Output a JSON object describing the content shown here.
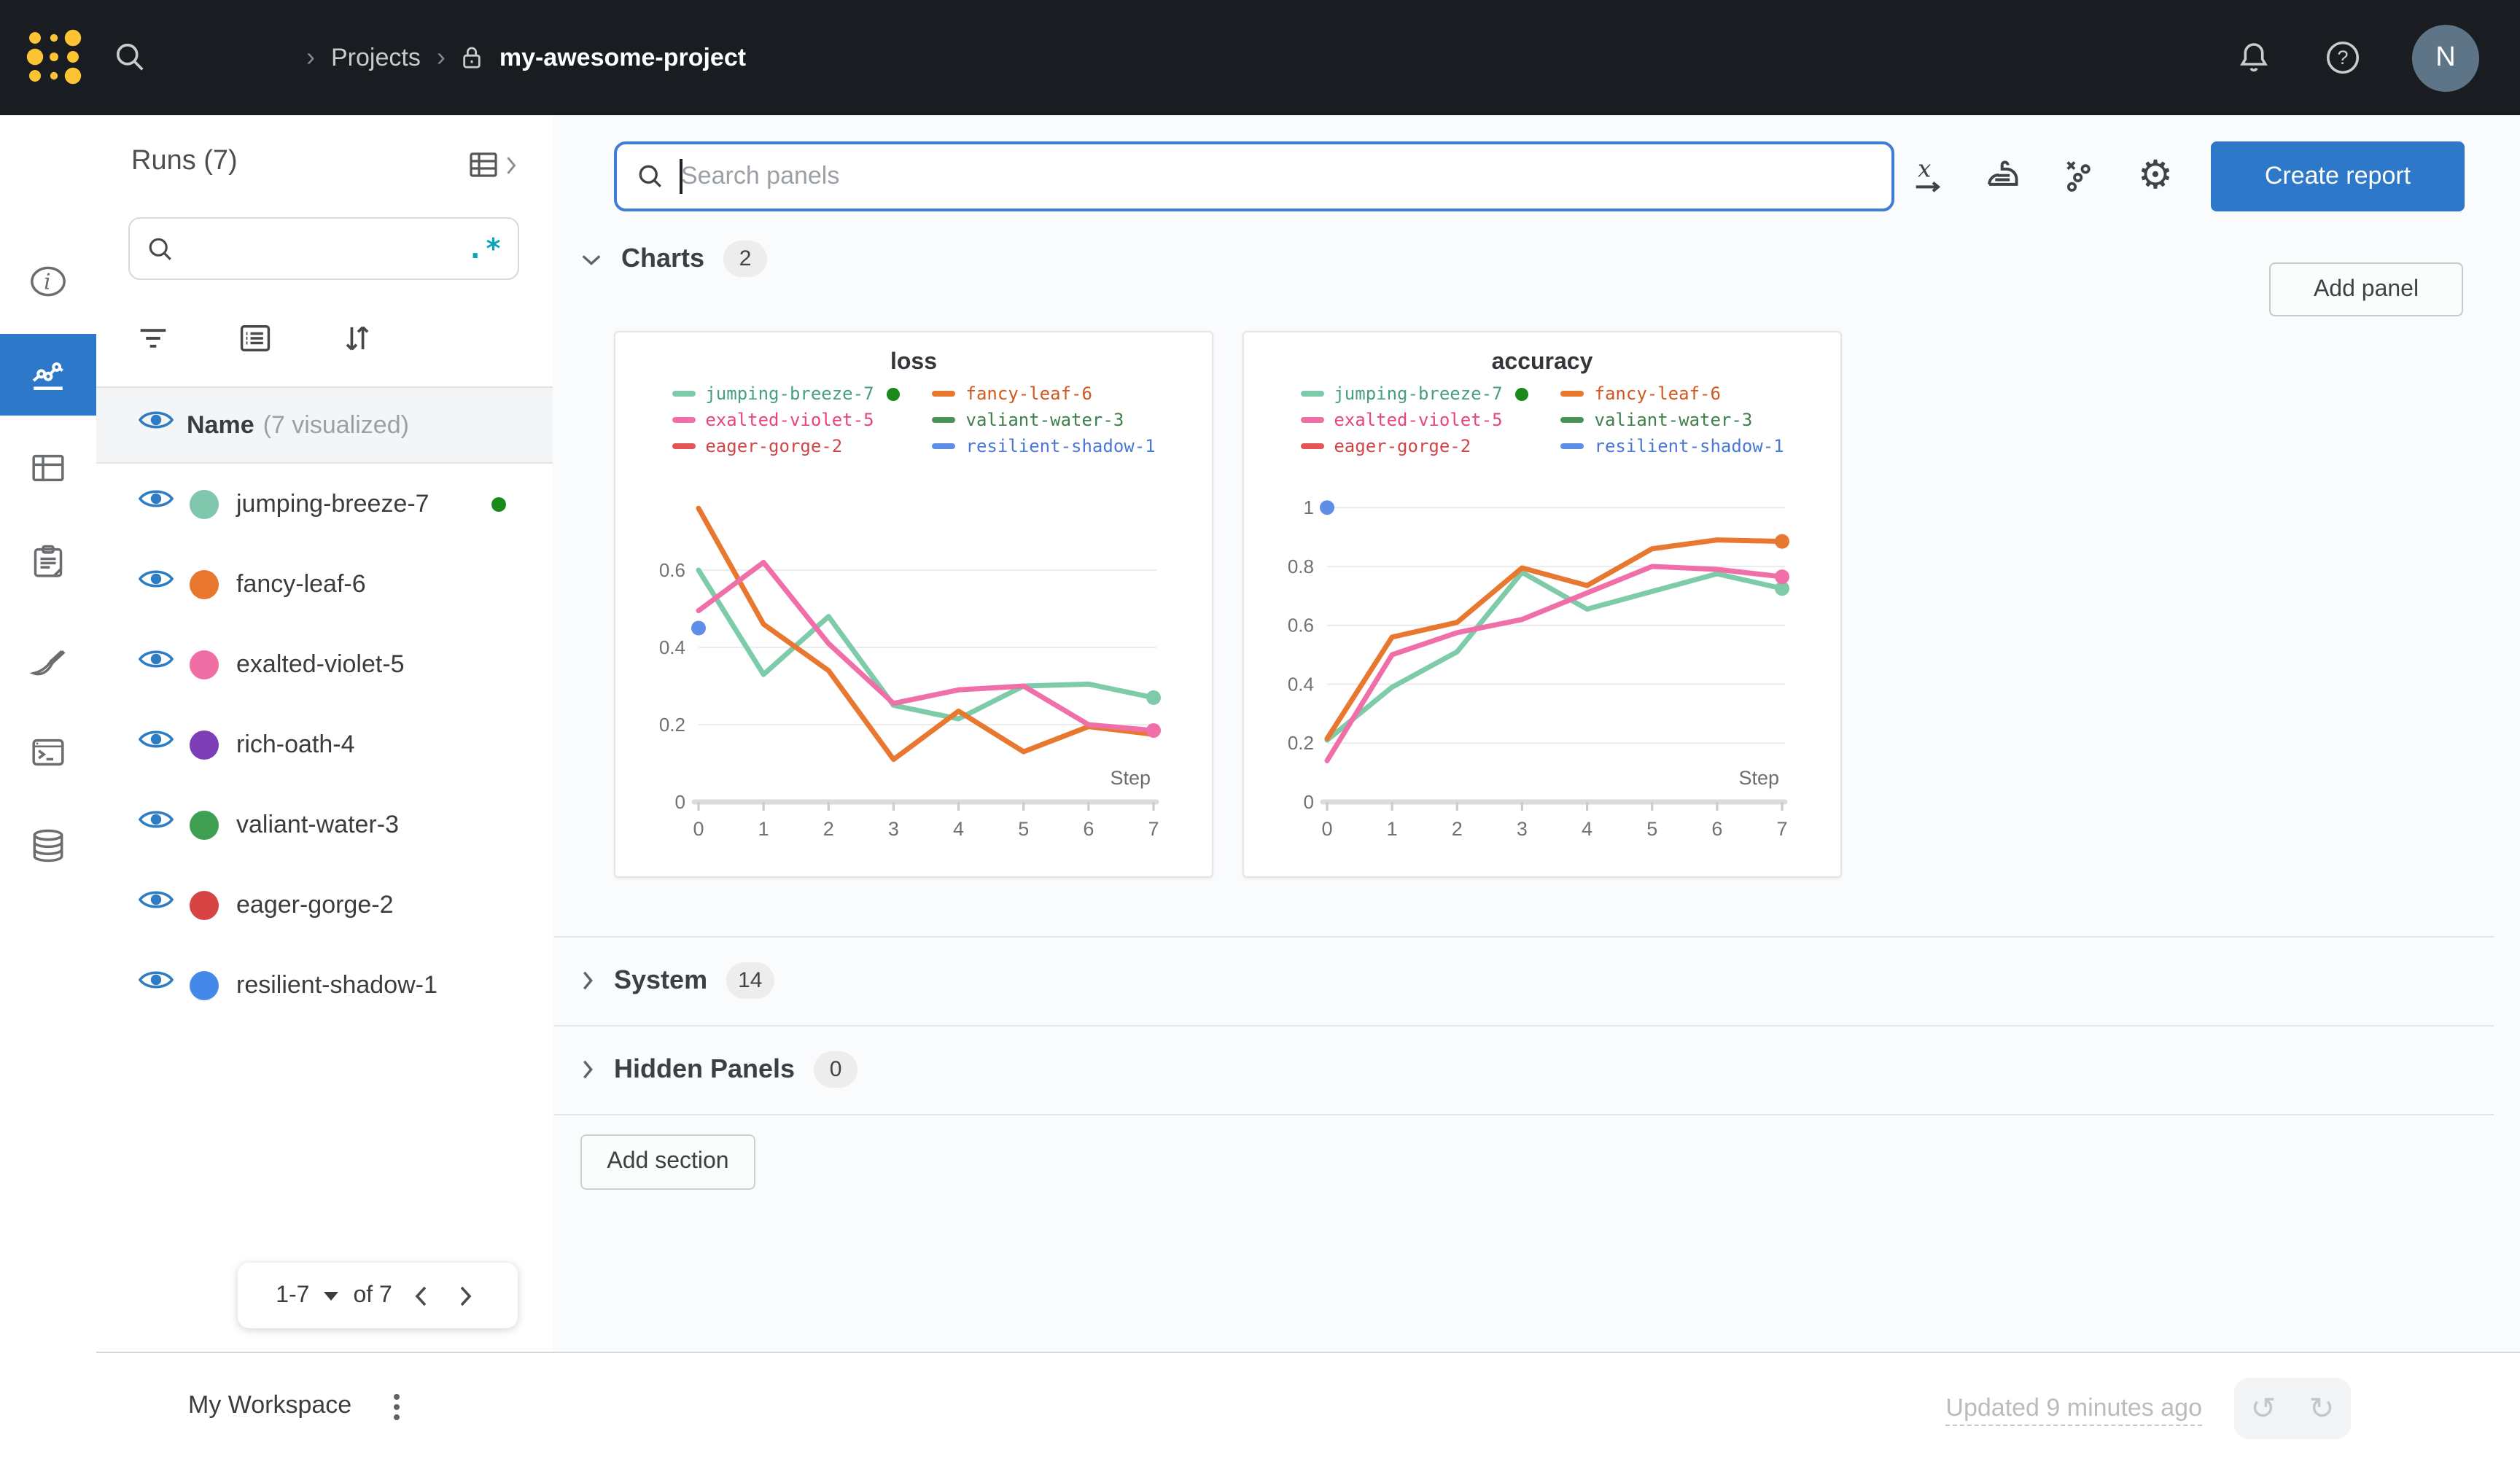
{
  "topbar": {
    "breadcrumb": {
      "projects": "Projects",
      "project": "my-awesome-project"
    },
    "avatar": "N",
    "icons": [
      "search-icon",
      "lock-icon",
      "bell-icon",
      "help-icon"
    ]
  },
  "left_rail": {
    "active_index": 1,
    "items": [
      {
        "name": "info"
      },
      {
        "name": "line-chart"
      },
      {
        "name": "table"
      },
      {
        "name": "clipboard"
      },
      {
        "name": "broom"
      },
      {
        "name": "terminal"
      },
      {
        "name": "database"
      }
    ]
  },
  "runs_panel": {
    "title": "Runs (7)",
    "regex": ".*",
    "toolbar_icons": [
      "table-view-icon",
      "filter-icon",
      "details-list-icon",
      "sort-icon"
    ],
    "header": {
      "name": "Name",
      "visualized": "(7 visualized)"
    },
    "runs": [
      {
        "name": "jumping-breeze-7",
        "color": "#7fc6ad",
        "visible": true,
        "running": true
      },
      {
        "name": "fancy-leaf-6",
        "color": "#e8762e",
        "visible": true
      },
      {
        "name": "exalted-violet-5",
        "color": "#ef6fa5",
        "visible": true
      },
      {
        "name": "rich-oath-4",
        "color": "#7d3fb7",
        "visible": true
      },
      {
        "name": "valiant-water-3",
        "color": "#3fa054",
        "visible": true
      },
      {
        "name": "eager-gorge-2",
        "color": "#d64444",
        "visible": true
      },
      {
        "name": "resilient-shadow-1",
        "color": "#4687ea",
        "visible": true
      }
    ],
    "pagination": {
      "range": "1-7",
      "of": "of 7"
    }
  },
  "main": {
    "search_placeholder": "Search panels",
    "toolbar_icons": [
      "x-axis-icon",
      "smoothing-iron-icon",
      "outliers-icon",
      "settings-gear-icon"
    ],
    "create_report": "Create report",
    "add_panel": "Add panel",
    "add_section": "Add section",
    "sections": [
      {
        "label": "Charts",
        "count": "2",
        "expanded": true
      },
      {
        "label": "System",
        "count": "14",
        "expanded": false
      },
      {
        "label": "Hidden Panels",
        "count": "0",
        "expanded": false
      }
    ]
  },
  "footer": {
    "workspace": "My Workspace",
    "updated": "Updated 9 minutes ago",
    "icons": [
      "kebab-menu-icon",
      "undo-icon",
      "redo-icon"
    ],
    "undo_glyph": "↺",
    "redo_glyph": "↻"
  },
  "colors": {
    "accent_blue": "#2e78c9",
    "running_green": "#1a8a1a",
    "topbar_bg": "#191c20",
    "regex_teal": "#0ca4ba"
  },
  "chart_data": [
    {
      "type": "line",
      "title": "loss",
      "xlabel": "Step",
      "x": [
        0,
        1,
        2,
        3,
        4,
        5,
        6,
        7
      ],
      "xticks": [
        0,
        1,
        2,
        3,
        4,
        5,
        6,
        7
      ],
      "yticks": [
        0,
        0.2,
        0.4,
        0.6
      ],
      "ylim": [
        0,
        0.8
      ],
      "grid": true,
      "legend_position": "top",
      "series": [
        {
          "name": "jumping-breeze-7",
          "color": "#7ecbaa",
          "text_color": "#459e85",
          "running": true,
          "end_dot": true,
          "values": [
            0.6,
            0.33,
            0.48,
            0.25,
            0.215,
            0.3,
            0.305,
            0.27
          ]
        },
        {
          "name": "fancy-leaf-6",
          "color": "#e8772f",
          "text_color": "#d2571e",
          "values": [
            0.76,
            0.46,
            0.34,
            0.11,
            0.235,
            0.13,
            0.195,
            0.175
          ]
        },
        {
          "name": "exalted-violet-5",
          "color": "#f06fa9",
          "text_color": "#e8437f",
          "end_dot": true,
          "values": [
            0.495,
            0.62,
            0.41,
            0.255,
            0.29,
            0.3,
            0.2,
            0.185
          ]
        },
        {
          "name": "valiant-water-3",
          "color": "#4b9158",
          "text_color": "#3f7f4b",
          "values": []
        },
        {
          "name": "eager-gorge-2",
          "color": "#e25656",
          "text_color": "#d04545",
          "values": []
        },
        {
          "name": "resilient-shadow-1",
          "color": "#5f8ee8",
          "text_color": "#4a77d4",
          "values": [],
          "point": [
            0,
            0.45
          ]
        }
      ]
    },
    {
      "type": "line",
      "title": "accuracy",
      "xlabel": "Step",
      "x": [
        0,
        1,
        2,
        3,
        4,
        5,
        6,
        7
      ],
      "xticks": [
        0,
        1,
        2,
        3,
        4,
        5,
        6,
        7
      ],
      "yticks": [
        0,
        0.2,
        0.4,
        0.6,
        0.8,
        1
      ],
      "ylim": [
        0,
        1.05
      ],
      "grid": true,
      "legend_position": "top",
      "series": [
        {
          "name": "jumping-breeze-7",
          "color": "#7ecbaa",
          "text_color": "#459e85",
          "running": true,
          "end_dot": true,
          "values": [
            0.21,
            0.39,
            0.51,
            0.78,
            0.655,
            0.715,
            0.775,
            0.725
          ]
        },
        {
          "name": "fancy-leaf-6",
          "color": "#e8772f",
          "text_color": "#d2571e",
          "end_dot": true,
          "values": [
            0.215,
            0.56,
            0.61,
            0.795,
            0.735,
            0.86,
            0.89,
            0.885
          ]
        },
        {
          "name": "exalted-violet-5",
          "color": "#f06fa9",
          "text_color": "#e8437f",
          "end_dot": true,
          "values": [
            0.14,
            0.5,
            0.575,
            0.62,
            0.71,
            0.8,
            0.79,
            0.765
          ]
        },
        {
          "name": "valiant-water-3",
          "color": "#4b9158",
          "text_color": "#3f7f4b",
          "values": []
        },
        {
          "name": "eager-gorge-2",
          "color": "#e25656",
          "text_color": "#d04545",
          "values": []
        },
        {
          "name": "resilient-shadow-1",
          "color": "#5f8ee8",
          "text_color": "#4a77d4",
          "values": [],
          "point": [
            0,
            1.0
          ]
        }
      ]
    }
  ]
}
